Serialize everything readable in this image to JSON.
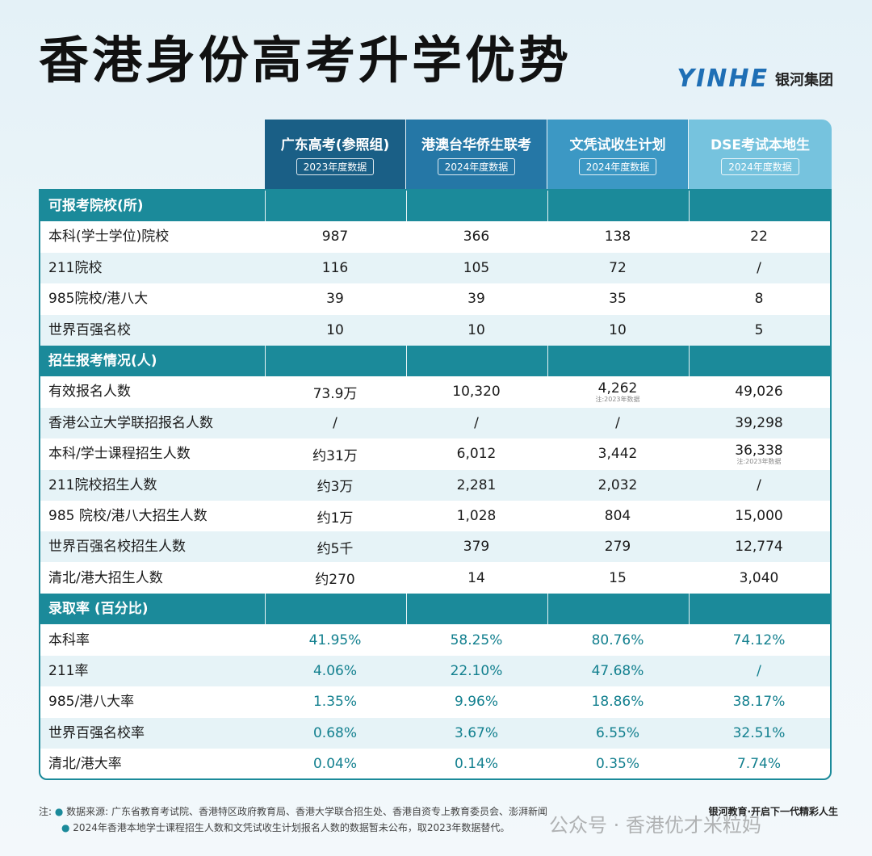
{
  "title": "香港身份高考升学优势",
  "brand": {
    "logo": "YINHE",
    "name": "银河集团"
  },
  "columns": [
    {
      "label": "广东高考(参照组)",
      "sub": "2023年度数据",
      "color": "#1a5f86"
    },
    {
      "label": "港澳台华侨生联考",
      "sub": "2024年度数据",
      "color": "#2577a6"
    },
    {
      "label": "文凭试收生计划",
      "sub": "2024年度数据",
      "color": "#3c98c4"
    },
    {
      "label": "DSE考试本地生",
      "sub": "2024年度数据",
      "color": "#76c3de"
    }
  ],
  "sections": [
    {
      "title": "可报考院校(所)",
      "rows": [
        {
          "label": "本科(学士学位)院校",
          "values": [
            "987",
            "366",
            "138",
            "22"
          ]
        },
        {
          "label": "211院校",
          "values": [
            "116",
            "105",
            "72",
            "/"
          ]
        },
        {
          "label": "985院校/港八大",
          "values": [
            "39",
            "39",
            "35",
            "8"
          ]
        },
        {
          "label": "世界百强名校",
          "values": [
            "10",
            "10",
            "10",
            "5"
          ]
        }
      ]
    },
    {
      "title": "招生报考情况(人)",
      "rows": [
        {
          "label": "有效报名人数",
          "values": [
            "73.9万",
            "10,320",
            "4,262",
            "49,026"
          ],
          "notes": [
            "",
            "",
            "注:2023年数据",
            ""
          ]
        },
        {
          "label": "香港公立大学联招报名人数",
          "values": [
            "/",
            "/",
            "/",
            "39,298"
          ]
        },
        {
          "label": "本科/学士课程招生人数",
          "values": [
            "约31万",
            "6,012",
            "3,442",
            "36,338"
          ],
          "notes": [
            "",
            "",
            "",
            "注:2023年数据"
          ]
        },
        {
          "label": "211院校招生人数",
          "values": [
            "约3万",
            "2,281",
            "2,032",
            "/"
          ]
        },
        {
          "label": "985 院校/港八大招生人数",
          "values": [
            "约1万",
            "1,028",
            "804",
            "15,000"
          ]
        },
        {
          "label": "世界百强名校招生人数",
          "values": [
            "约5千",
            "379",
            "279",
            "12,774"
          ]
        },
        {
          "label": "清北/港大招生人数",
          "values": [
            "约270",
            "14",
            "15",
            "3,040"
          ]
        }
      ]
    },
    {
      "title": "录取率 (百分比)",
      "pct": true,
      "rows": [
        {
          "label": "本科率",
          "values": [
            "41.95%",
            "58.25%",
            "80.76%",
            "74.12%"
          ]
        },
        {
          "label": "211率",
          "values": [
            "4.06%",
            "22.10%",
            "47.68%",
            "/"
          ]
        },
        {
          "label": "985/港八大率",
          "values": [
            "1.35%",
            "9.96%",
            "18.86%",
            "38.17%"
          ]
        },
        {
          "label": "世界百强名校率",
          "values": [
            "0.68%",
            "3.67%",
            "6.55%",
            "32.51%"
          ]
        },
        {
          "label": "清北/港大率",
          "values": [
            "0.04%",
            "0.14%",
            "0.35%",
            "7.74%"
          ]
        }
      ]
    }
  ],
  "footer": {
    "prefix": "注:",
    "line1": "数据来源: 广东省教育考试院、香港特区政府教育局、香港大学联合招生处、香港自资专上教育委员会、澎湃新闻",
    "line2": "2024年香港本地学士课程招生人数和文凭试收生计划报名人数的数据暂未公布，取2023年数据替代。",
    "slogan": "银河教育·开启下一代精彩人生"
  },
  "watermark": "公众号 · 香港优才米粒妈"
}
